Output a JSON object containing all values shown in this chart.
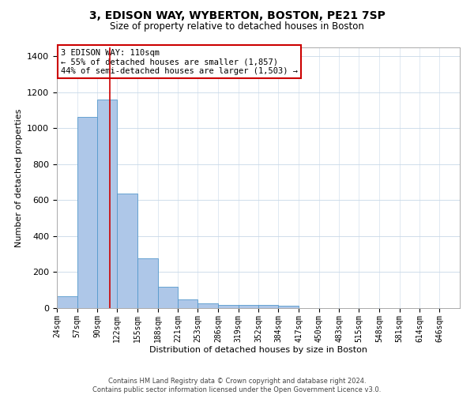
{
  "title": "3, EDISON WAY, WYBERTON, BOSTON, PE21 7SP",
  "subtitle": "Size of property relative to detached houses in Boston",
  "xlabel": "Distribution of detached houses by size in Boston",
  "ylabel": "Number of detached properties",
  "footer_line1": "Contains HM Land Registry data © Crown copyright and database right 2024.",
  "footer_line2": "Contains public sector information licensed under the Open Government Licence v3.0.",
  "annotation_line1": "3 EDISON WAY: 110sqm",
  "annotation_line2": "← 55% of detached houses are smaller (1,857)",
  "annotation_line3": "44% of semi-detached houses are larger (1,503) →",
  "property_size_sqm": 110,
  "bar_edges": [
    24,
    57,
    90,
    122,
    155,
    188,
    221,
    253,
    286,
    319,
    352,
    384,
    417,
    450,
    483,
    515,
    548,
    581,
    614,
    646,
    679
  ],
  "bar_heights": [
    65,
    1065,
    1160,
    635,
    275,
    120,
    50,
    25,
    18,
    18,
    18,
    12,
    0,
    0,
    0,
    0,
    0,
    0,
    0,
    0
  ],
  "bar_color": "#aec7e8",
  "bar_edge_color": "#5599cc",
  "vline_color": "#cc0000",
  "vline_x": 110,
  "ylim": [
    0,
    1450
  ],
  "xlim": [
    24,
    679
  ],
  "yticks": [
    0,
    200,
    400,
    600,
    800,
    1000,
    1200,
    1400
  ],
  "background_color": "#ffffff",
  "grid_color": "#c8d8e8",
  "annotation_box_color": "#cc0000",
  "title_fontsize": 10,
  "subtitle_fontsize": 8.5,
  "ylabel_fontsize": 8,
  "xlabel_fontsize": 8,
  "ytick_fontsize": 8,
  "xtick_fontsize": 7,
  "footer_fontsize": 6,
  "annotation_fontsize": 7.5
}
